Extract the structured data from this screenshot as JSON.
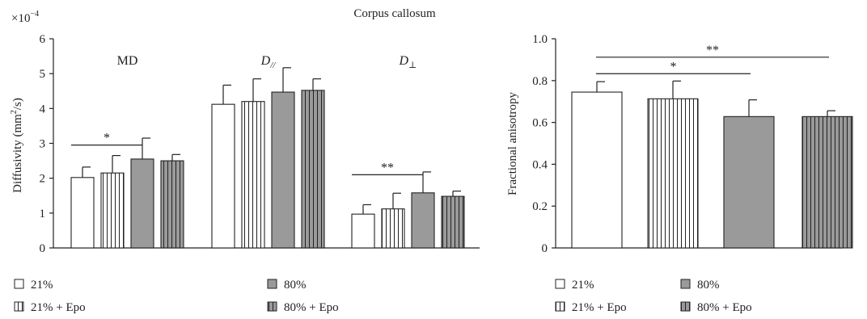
{
  "figure_title": "Corpus callosum",
  "legend_items": [
    {
      "label": "21%",
      "fill": "white"
    },
    {
      "label": "80%",
      "fill": "#999999"
    },
    {
      "label": "21% + Epo",
      "fill": "vstripe-white"
    },
    {
      "label": "80% + Epo",
      "fill": "vstripe-gray"
    }
  ],
  "chart_data": [
    {
      "type": "bar",
      "title": "",
      "multiplier": "×10",
      "multiplier_exp": "−4",
      "ylabel": "Diffusivity (mm",
      "ylabel_sup": "2",
      "ylabel_suffix": "/s)",
      "ylim": [
        0,
        6
      ],
      "yticks": [
        0,
        1,
        2,
        3,
        4,
        5,
        6
      ],
      "grid": false,
      "legend_position": "bottom",
      "groups": [
        {
          "label": "MD",
          "italic": false,
          "values": [
            2.02,
            2.15,
            2.55,
            2.5
          ],
          "errors": [
            0.3,
            0.5,
            0.6,
            0.18
          ]
        },
        {
          "label": "D",
          "sub": "//",
          "italic": true,
          "values": [
            4.12,
            4.2,
            4.47,
            4.52
          ],
          "errors": [
            0.55,
            0.65,
            0.7,
            0.33
          ]
        },
        {
          "label": "D",
          "sub": "⊥",
          "italic": true,
          "values": [
            0.97,
            1.12,
            1.58,
            1.48
          ],
          "errors": [
            0.27,
            0.45,
            0.6,
            0.15
          ]
        }
      ],
      "significance": [
        {
          "label": "*",
          "group": 0,
          "from": 0,
          "to": 2,
          "y": 2.95
        },
        {
          "label": "**",
          "group": 2,
          "from": 0,
          "to": 2,
          "y": 2.1
        }
      ]
    },
    {
      "type": "bar",
      "title": "",
      "ylabel": "Fractional anisotropy",
      "ylim": [
        0,
        1
      ],
      "yticks": [
        "0",
        "0.2",
        "0.4",
        "0.6",
        "0.8",
        "1.0"
      ],
      "grid": false,
      "legend_position": "bottom",
      "values": [
        0.745,
        0.713,
        0.628,
        0.628
      ],
      "errors": [
        0.05,
        0.085,
        0.08,
        0.028
      ],
      "significance": [
        {
          "label": "*",
          "from": 0,
          "to": 2,
          "y": 0.833
        },
        {
          "label": "**",
          "from": 0,
          "to": 3,
          "y": 0.912
        }
      ]
    }
  ]
}
